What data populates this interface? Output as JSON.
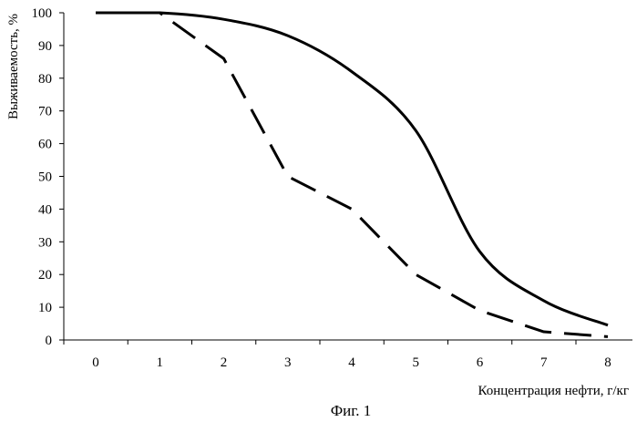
{
  "chart_data": {
    "type": "line",
    "title": "",
    "xlabel": "Концентрация нефти, г/кг",
    "ylabel": "Выживаемость, %",
    "caption": "Фиг. 1",
    "x": [
      0,
      1,
      2,
      3,
      4,
      5,
      6,
      7,
      8
    ],
    "xlim": [
      0,
      8
    ],
    "ylim": [
      0,
      100
    ],
    "xticks": [
      "0",
      "1",
      "2",
      "3",
      "4",
      "5",
      "6",
      "7",
      "8"
    ],
    "yticks": [
      "0",
      "10",
      "20",
      "30",
      "40",
      "50",
      "60",
      "70",
      "80",
      "90",
      "100"
    ],
    "grid": false,
    "legend": "none",
    "series": [
      {
        "style": "solid",
        "color": "#000000",
        "smooth": true,
        "values": [
          100,
          100,
          98,
          93,
          82,
          64,
          27,
          12,
          4.5
        ]
      },
      {
        "style": "dashed",
        "color": "#000000",
        "smooth": false,
        "values": [
          100,
          100,
          86,
          50,
          40,
          20,
          9,
          2.5,
          1
        ]
      }
    ]
  }
}
